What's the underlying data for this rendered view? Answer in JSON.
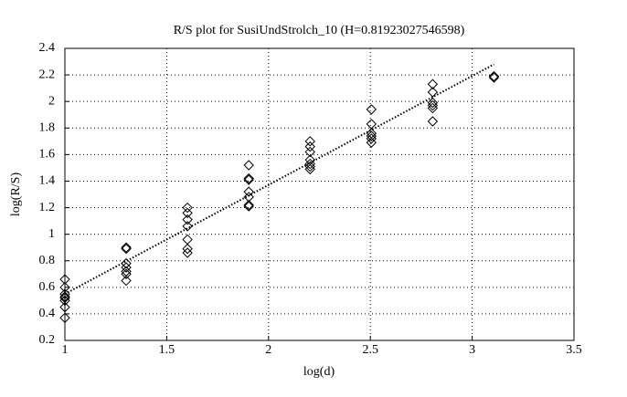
{
  "chart_data": {
    "type": "scatter",
    "title": "R/S plot for SusiUndStrolch_10 (H=0.81923027546598)",
    "x_label": "log(d)",
    "y_label": "log(R/S)",
    "xlim": [
      1,
      3.5
    ],
    "xticks": [
      1,
      1.5,
      2,
      2.5,
      3,
      3.5
    ],
    "ylim": [
      0.2,
      2.4
    ],
    "yticks": [
      0.2,
      0.4,
      0.6,
      0.8,
      1,
      1.2,
      1.4,
      1.6,
      1.8,
      2,
      2.2,
      2.4
    ],
    "grid": true,
    "series": [
      {
        "marker": "diamond",
        "color": "#000000",
        "x": [
          1,
          1,
          1,
          1,
          1,
          1,
          1,
          1,
          1.301,
          1.301,
          1.301,
          1.301,
          1.301,
          1.301,
          1.301,
          1.602,
          1.602,
          1.602,
          1.602,
          1.602,
          1.602,
          1.602,
          1.903,
          1.903,
          1.903,
          1.903,
          1.903,
          1.903,
          1.903,
          2.204,
          2.204,
          2.204,
          2.204,
          2.204,
          2.204,
          2.204,
          2.505,
          2.505,
          2.505,
          2.505,
          2.505,
          2.505,
          2.806,
          2.806,
          2.806,
          2.806,
          2.806,
          2.806,
          3.107,
          3.107
        ],
        "values": [
          0.66,
          0.6,
          0.55,
          0.52,
          0.5,
          0.53,
          0.45,
          0.37,
          0.9,
          0.89,
          0.78,
          0.75,
          0.72,
          0.7,
          0.65,
          1.2,
          1.16,
          1.11,
          1.06,
          0.96,
          0.89,
          0.86,
          1.52,
          1.42,
          1.41,
          1.32,
          1.28,
          1.22,
          1.21,
          1.7,
          1.66,
          1.62,
          1.56,
          1.53,
          1.51,
          1.49,
          1.94,
          1.83,
          1.76,
          1.74,
          1.72,
          1.69,
          2.13,
          2.07,
          1.99,
          1.97,
          1.95,
          1.85,
          2.19,
          2.18
        ]
      },
      {
        "line": "dotted",
        "color": "#000000",
        "x": [
          1,
          3.107
        ],
        "values": [
          0.55,
          2.28
        ]
      }
    ]
  }
}
